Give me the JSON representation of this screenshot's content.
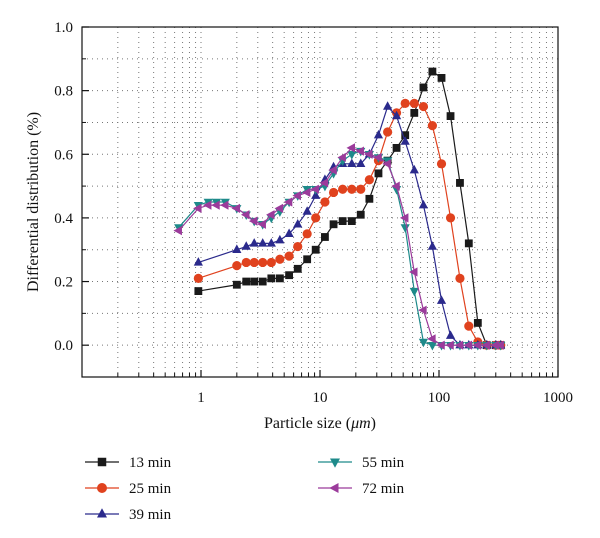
{
  "chart_data": {
    "type": "line",
    "title": "",
    "xlabel": "Particle size (μm)",
    "xlabel_parts": [
      "Particle size (",
      "μm",
      ")"
    ],
    "ylabel": "Differential distribution (%)",
    "xscale": "log",
    "xlim": [
      0.1,
      1000
    ],
    "ylim": [
      -0.1,
      1.0
    ],
    "xticks": [
      1,
      10,
      100,
      1000
    ],
    "xtick_labels": [
      "1",
      "10",
      "100",
      "1000"
    ],
    "yticks": [
      0.0,
      0.2,
      0.4,
      0.6,
      0.8,
      1.0
    ],
    "ytick_labels": [
      "0.0",
      "0.2",
      "0.4",
      "0.6",
      "0.8",
      "1.0"
    ],
    "grid": "dotted",
    "legend_position": "bottom",
    "series": [
      {
        "name": "13 min",
        "color": "#1a1a1a",
        "marker": "square",
        "x": [
          0.95,
          2.0,
          2.4,
          2.8,
          3.3,
          3.9,
          4.6,
          5.5,
          6.5,
          7.8,
          9.2,
          11,
          13,
          15.5,
          18.5,
          22,
          26,
          31,
          37,
          44,
          52,
          62,
          74,
          88,
          105,
          125,
          150,
          178,
          212,
          252,
          300,
          330
        ],
        "y": [
          0.17,
          0.19,
          0.2,
          0.2,
          0.2,
          0.21,
          0.21,
          0.22,
          0.24,
          0.27,
          0.3,
          0.34,
          0.38,
          0.39,
          0.39,
          0.41,
          0.46,
          0.54,
          0.58,
          0.62,
          0.66,
          0.73,
          0.81,
          0.86,
          0.84,
          0.72,
          0.51,
          0.32,
          0.07,
          0.0,
          0.0,
          0.0
        ]
      },
      {
        "name": "25 min",
        "color": "#e0421e",
        "marker": "circle",
        "x": [
          0.95,
          2.0,
          2.4,
          2.8,
          3.3,
          3.9,
          4.6,
          5.5,
          6.5,
          7.8,
          9.2,
          11,
          13,
          15.5,
          18.5,
          22,
          26,
          31,
          37,
          44,
          52,
          62,
          74,
          88,
          105,
          125,
          150,
          178,
          212,
          252,
          300,
          330
        ],
        "y": [
          0.21,
          0.25,
          0.26,
          0.26,
          0.26,
          0.26,
          0.27,
          0.28,
          0.31,
          0.35,
          0.4,
          0.45,
          0.48,
          0.49,
          0.49,
          0.49,
          0.52,
          0.58,
          0.67,
          0.73,
          0.76,
          0.76,
          0.75,
          0.69,
          0.57,
          0.4,
          0.21,
          0.06,
          0.01,
          0.0,
          0.0,
          0.0
        ]
      },
      {
        "name": "39 min",
        "color": "#2b2a8c",
        "marker": "triangle-up",
        "x": [
          0.95,
          2.0,
          2.4,
          2.8,
          3.3,
          3.9,
          4.6,
          5.5,
          6.5,
          7.8,
          9.2,
          11,
          13,
          15.5,
          18.5,
          22,
          26,
          31,
          37,
          44,
          52,
          62,
          74,
          88,
          105,
          125,
          150,
          178,
          212,
          252,
          300,
          330
        ],
        "y": [
          0.26,
          0.3,
          0.31,
          0.32,
          0.32,
          0.32,
          0.33,
          0.35,
          0.38,
          0.42,
          0.47,
          0.52,
          0.56,
          0.57,
          0.57,
          0.57,
          0.6,
          0.66,
          0.75,
          0.72,
          0.64,
          0.55,
          0.44,
          0.31,
          0.14,
          0.03,
          0.0,
          0.0,
          0.0,
          0.0,
          0.0,
          0.0
        ]
      },
      {
        "name": "55 min",
        "color": "#1e8a8a",
        "marker": "triangle-down",
        "x": [
          0.65,
          0.95,
          1.15,
          1.35,
          1.6,
          2.0,
          2.4,
          2.8,
          3.3,
          3.9,
          4.6,
          5.5,
          6.5,
          7.8,
          9.2,
          11,
          13,
          15.5,
          18.5,
          22,
          26,
          31,
          37,
          44,
          52,
          62,
          74,
          88,
          105,
          125,
          150,
          178,
          212,
          252,
          300,
          330
        ],
        "y": [
          0.37,
          0.44,
          0.45,
          0.45,
          0.45,
          0.43,
          0.41,
          0.39,
          0.38,
          0.4,
          0.42,
          0.45,
          0.47,
          0.49,
          0.49,
          0.5,
          0.54,
          0.58,
          0.6,
          0.61,
          0.6,
          0.59,
          0.58,
          0.49,
          0.37,
          0.17,
          0.01,
          0.0,
          0.0,
          0.0,
          0.0,
          0.0,
          0.0,
          0.0,
          0.0,
          0.0
        ]
      },
      {
        "name": "72 min",
        "color": "#9b3b9b",
        "marker": "triangle-left",
        "x": [
          0.65,
          0.95,
          1.15,
          1.35,
          1.6,
          2.0,
          2.4,
          2.8,
          3.3,
          3.9,
          4.6,
          5.5,
          6.5,
          7.8,
          9.2,
          11,
          13,
          15.5,
          18.5,
          22,
          26,
          31,
          37,
          44,
          52,
          62,
          74,
          88,
          105,
          125,
          150,
          178,
          212,
          252,
          300,
          330
        ],
        "y": [
          0.36,
          0.43,
          0.44,
          0.44,
          0.44,
          0.43,
          0.41,
          0.39,
          0.38,
          0.41,
          0.43,
          0.45,
          0.47,
          0.48,
          0.49,
          0.51,
          0.55,
          0.59,
          0.62,
          0.61,
          0.6,
          0.59,
          0.57,
          0.5,
          0.4,
          0.23,
          0.11,
          0.02,
          0.0,
          0.0,
          0.0,
          0.0,
          0.0,
          0.0,
          0.0,
          0.0
        ]
      }
    ]
  }
}
